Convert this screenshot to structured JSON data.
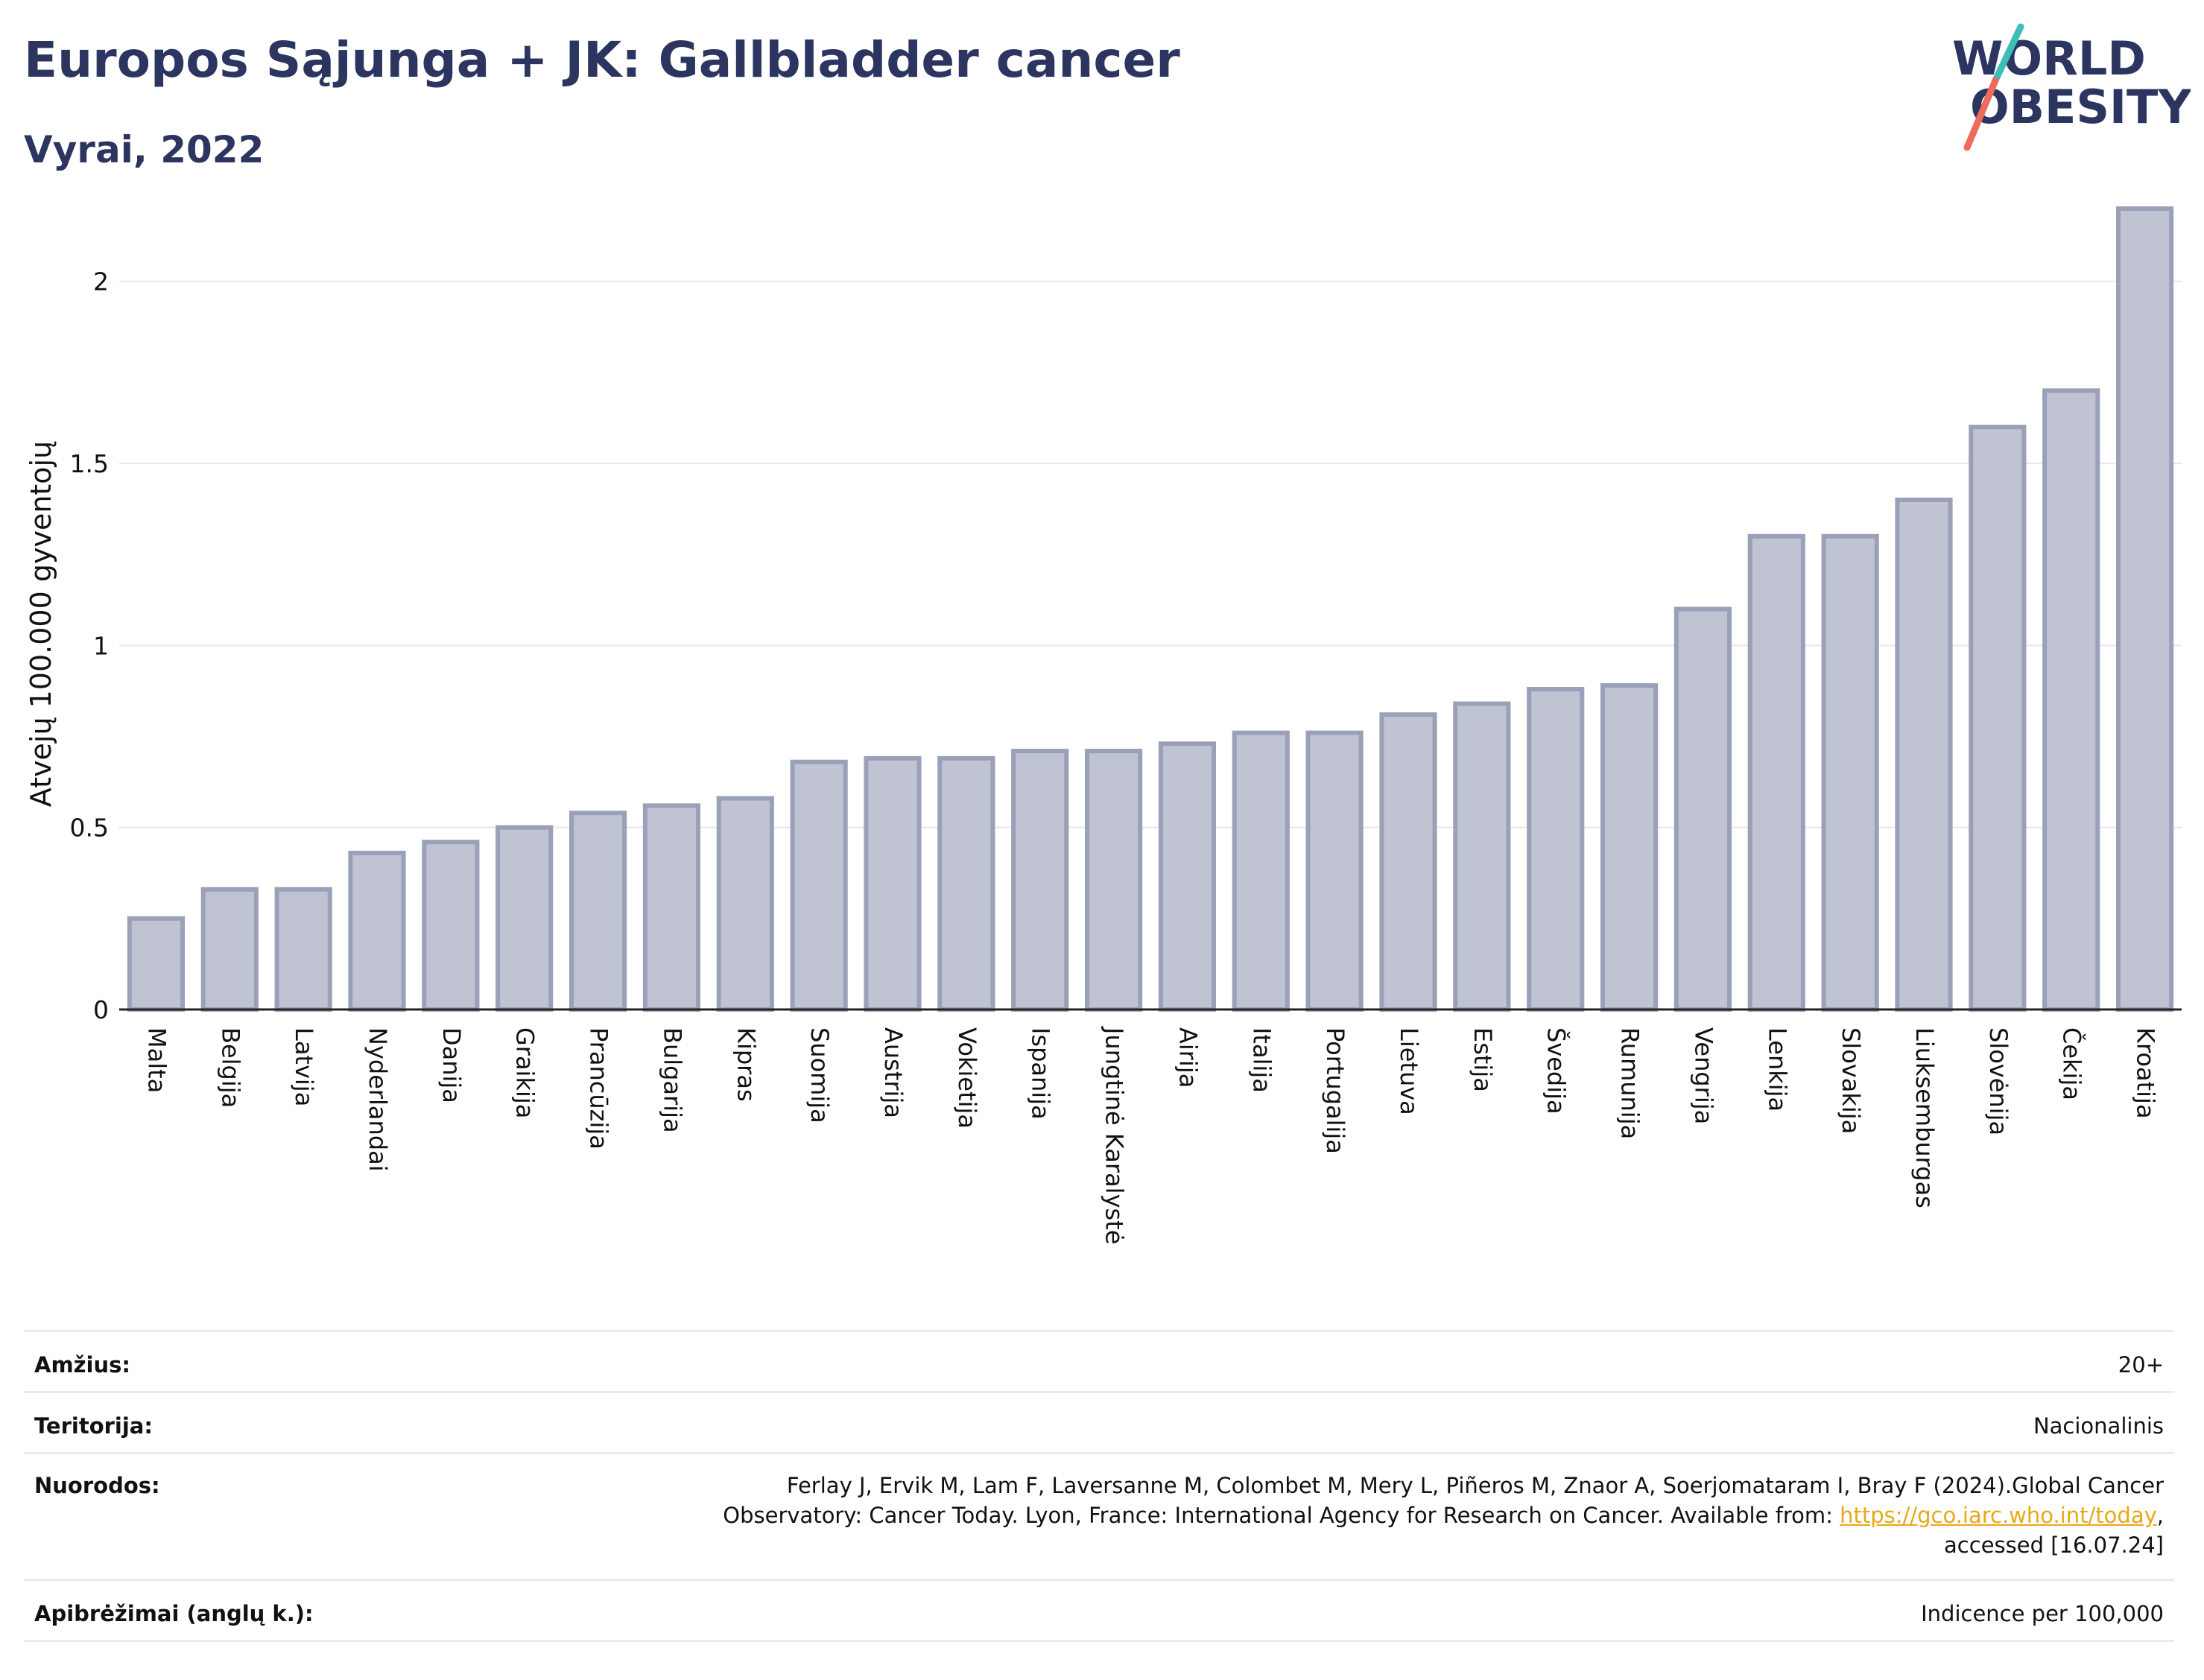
{
  "header": {
    "title": "Europos Sąjunga + JK: Gallbladder cancer",
    "subtitle": "Vyrai, 2022",
    "logo_line1": "WORLD",
    "logo_line2": "OBESITY"
  },
  "colors": {
    "title": "#2b3560",
    "bar_fill": "#bfc3d2",
    "bar_stroke": "#9aa0b8",
    "grid": "#e6e8ee",
    "logo_teal": "#3bbfb8",
    "logo_coral": "#ee6b5c",
    "link": "#e8a817"
  },
  "chart_data": {
    "type": "bar",
    "title": "Europos Sąjunga + JK: Gallbladder cancer",
    "subtitle": "Vyrai, 2022",
    "xlabel": "",
    "ylabel": "Atvejų 100.000 gyventojų",
    "ylim": [
      0,
      2.2
    ],
    "yticks": [
      0,
      0.5,
      1,
      1.5,
      2
    ],
    "ytick_labels": [
      "0",
      "0.5",
      "1",
      "1.5",
      "2"
    ],
    "grid": true,
    "categories": [
      "Malta",
      "Belgija",
      "Latvija",
      "Nyderlandai",
      "Danija",
      "Graikija",
      "Prancūzija",
      "Bulgarija",
      "Kipras",
      "Suomija",
      "Austrija",
      "Vokietija",
      "Ispanija",
      "Jungtinė Karalystė",
      "Airija",
      "Italija",
      "Portugalija",
      "Lietuva",
      "Estija",
      "Švedija",
      "Rumunija",
      "Vengrija",
      "Lenkija",
      "Slovakija",
      "Liuksemburgas",
      "Slovėnija",
      "Čekija",
      "Kroatija"
    ],
    "values": [
      0.25,
      0.33,
      0.33,
      0.43,
      0.46,
      0.5,
      0.54,
      0.56,
      0.58,
      0.68,
      0.69,
      0.69,
      0.71,
      0.71,
      0.73,
      0.76,
      0.76,
      0.81,
      0.84,
      0.88,
      0.89,
      1.1,
      1.3,
      1.3,
      1.4,
      1.6,
      1.7,
      2.2
    ]
  },
  "meta": {
    "age_label": "Amžius:",
    "age_value": "20+",
    "territory_label": "Teritorija:",
    "territory_value": "Nacionalinis",
    "refs_label": "Nuorodos:",
    "refs_line1": "Ferlay J, Ervik M, Lam F, Laversanne M, Colombet M, Mery L, Piñeros M, Znaor A, Soerjomataram I, Bray F (2024).Global Cancer",
    "refs_line2_pre": "Observatory: Cancer Today. Lyon, France: International Agency for Research on Cancer. Available from: ",
    "refs_link": "https://gco.iarc.who.int/today",
    "refs_line2_post": ",",
    "refs_line3": "accessed [16.07.24]",
    "defs_label": "Apibrėžimai (anglų k.):",
    "defs_value": "Indicence per 100,000"
  }
}
